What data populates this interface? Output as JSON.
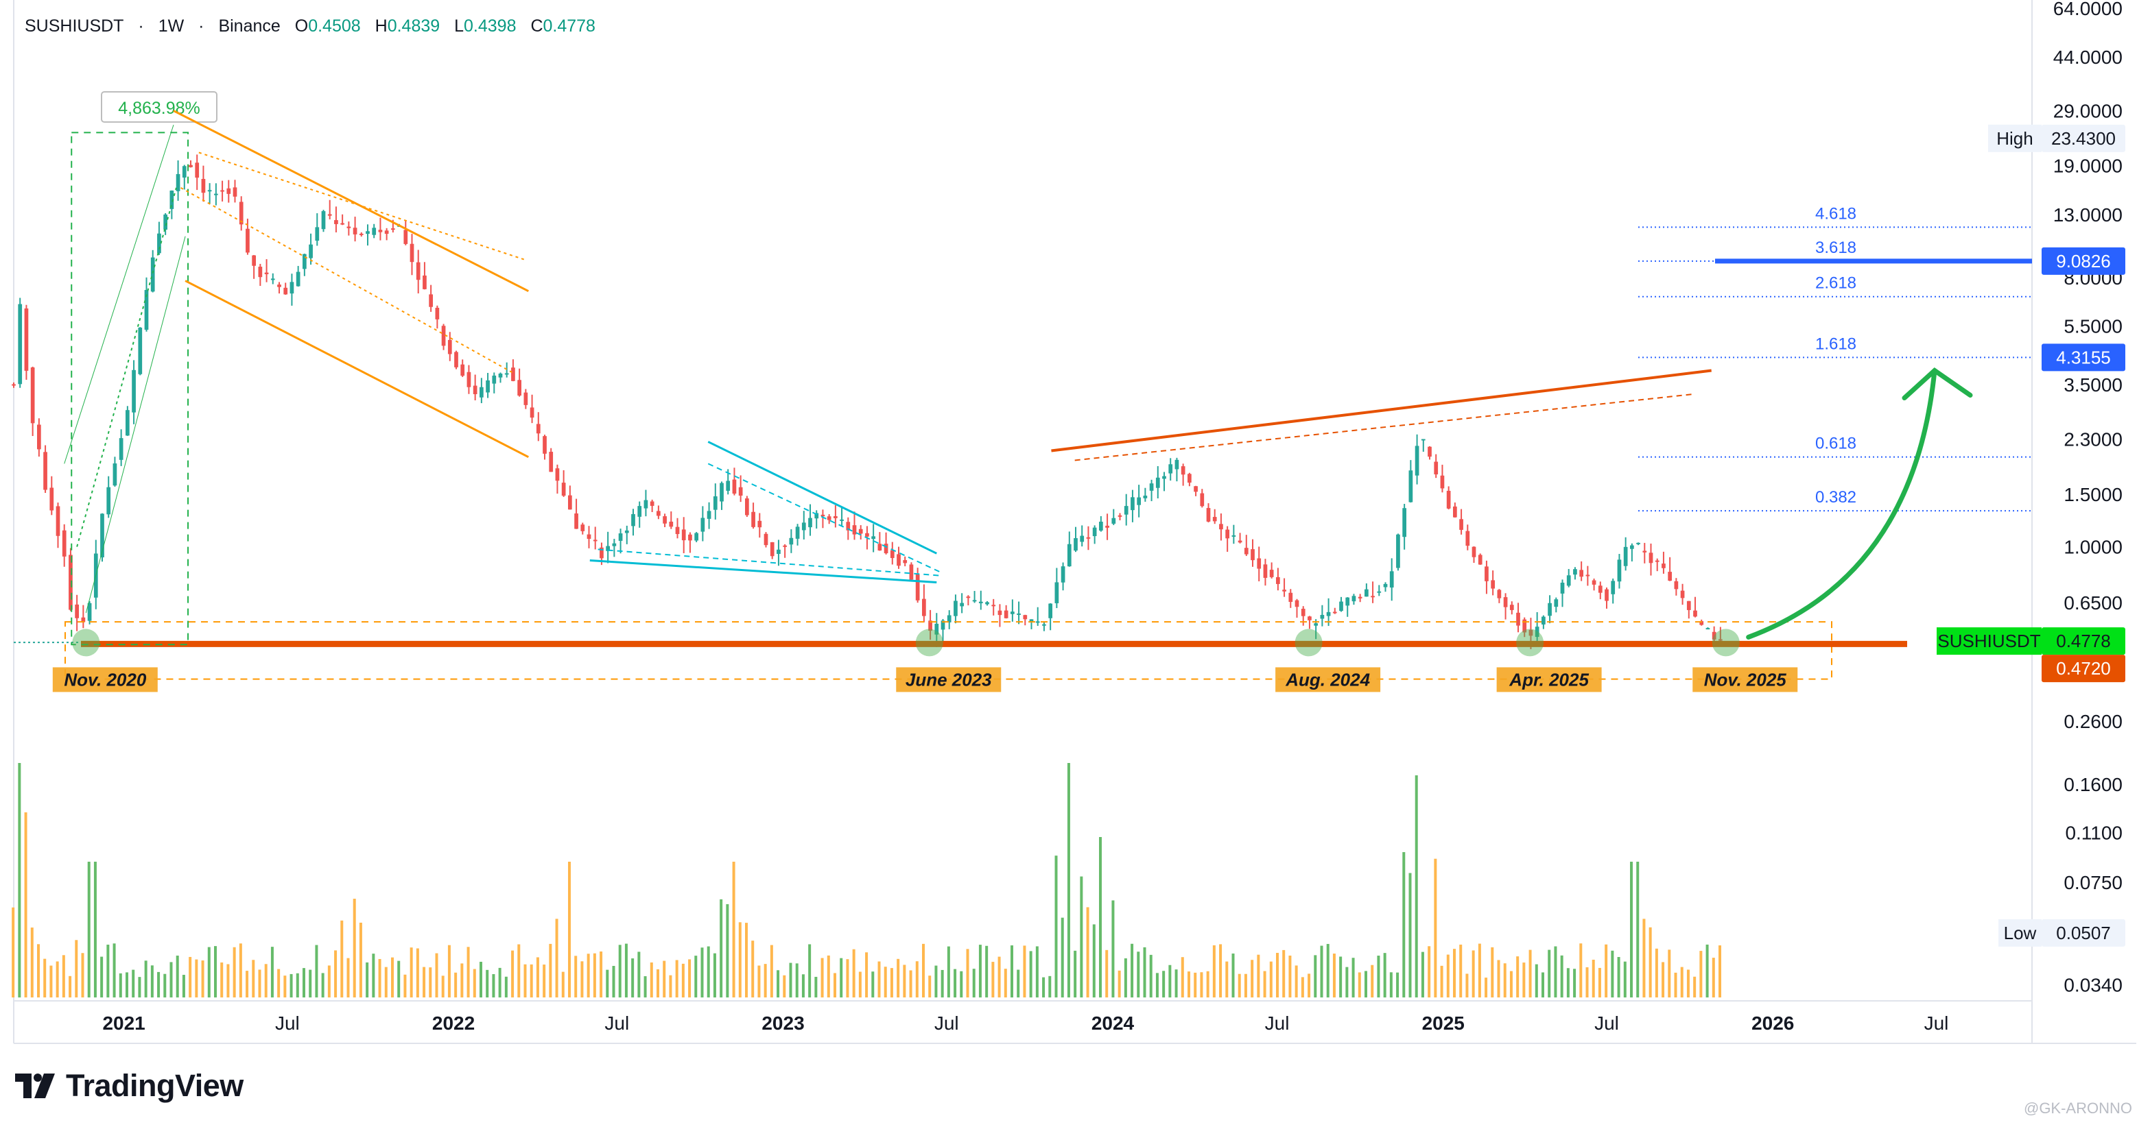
{
  "header": {
    "symbol": "SUSHIUSDT",
    "interval": "1W",
    "exchange": "Binance",
    "separator": "·",
    "open_label": "O",
    "open": "0.4508",
    "high_label": "H",
    "high": "0.4839",
    "low_label": "L",
    "low": "0.4398",
    "close_label": "C",
    "close": "0.4778"
  },
  "branding": {
    "logo_text": "TradingView",
    "watermark": "@GK-ARONNO"
  },
  "colors": {
    "up": "#26a69a",
    "down": "#ef5350",
    "support": "#e65100",
    "orange": "#ff9800",
    "cyan": "#00bcd4",
    "fib": "#2962ff",
    "arrow": "#22b14c",
    "volume_up": "#66bb6a",
    "volume_down": "#ffb74d"
  },
  "chart_data": {
    "type": "candlestick",
    "symbol": "SUSHIUSDT",
    "timeframe": "1W",
    "y_scale": "log",
    "ylim": [
      0.03,
      64
    ],
    "x_range": [
      "2020-09-01",
      "2026-10-15"
    ],
    "y_ticks": [
      {
        "value": 64,
        "label": "64.0000"
      },
      {
        "value": 44,
        "label": "44.0000"
      },
      {
        "value": 29,
        "label": "29.0000"
      },
      {
        "value": 19,
        "label": "19.0000"
      },
      {
        "value": 13,
        "label": "13.0000"
      },
      {
        "value": 8,
        "label": "8.0000"
      },
      {
        "value": 5.5,
        "label": "5.5000"
      },
      {
        "value": 3.5,
        "label": "3.5000"
      },
      {
        "value": 2.3,
        "label": "2.3000"
      },
      {
        "value": 1.5,
        "label": "1.5000"
      },
      {
        "value": 1.0,
        "label": "1.0000"
      },
      {
        "value": 0.65,
        "label": "0.6500"
      },
      {
        "value": 0.26,
        "label": "0.2600"
      },
      {
        "value": 0.16,
        "label": "0.1600"
      },
      {
        "value": 0.11,
        "label": "0.1100"
      },
      {
        "value": 0.075,
        "label": "0.0750"
      },
      {
        "value": 0.0507,
        "label": "0.0507"
      },
      {
        "value": 0.034,
        "label": "0.0340"
      }
    ],
    "x_ticks": [
      {
        "date": "2021-01-01",
        "label": "2021",
        "bold": true
      },
      {
        "date": "2021-07-01",
        "label": "Jul",
        "bold": false
      },
      {
        "date": "2022-01-01",
        "label": "2022",
        "bold": true
      },
      {
        "date": "2022-07-01",
        "label": "Jul",
        "bold": false
      },
      {
        "date": "2023-01-01",
        "label": "2023",
        "bold": true
      },
      {
        "date": "2023-07-01",
        "label": "Jul",
        "bold": false
      },
      {
        "date": "2024-01-01",
        "label": "2024",
        "bold": true
      },
      {
        "date": "2024-07-01",
        "label": "Jul",
        "bold": false
      },
      {
        "date": "2025-01-01",
        "label": "2025",
        "bold": true
      },
      {
        "date": "2025-07-01",
        "label": "Jul",
        "bold": false
      },
      {
        "date": "2026-01-01",
        "label": "2026",
        "bold": true
      },
      {
        "date": "2026-07-01",
        "label": "Jul",
        "bold": false
      }
    ],
    "price_path": [
      {
        "date": "2020-09-01",
        "price": 3.5
      },
      {
        "date": "2020-09-08",
        "price": 6.3
      },
      {
        "date": "2020-09-22",
        "price": 2.6
      },
      {
        "date": "2020-10-06",
        "price": 1.6
      },
      {
        "date": "2020-10-27",
        "price": 0.95
      },
      {
        "date": "2020-11-04",
        "price": 0.6
      },
      {
        "date": "2020-11-20",
        "price": 0.55
      },
      {
        "date": "2020-12-10",
        "price": 1.4
      },
      {
        "date": "2021-01-05",
        "price": 2.8
      },
      {
        "date": "2021-02-01",
        "price": 9.5
      },
      {
        "date": "2021-02-20",
        "price": 15.0
      },
      {
        "date": "2021-03-13",
        "price": 20.5
      },
      {
        "date": "2021-04-01",
        "price": 15.0
      },
      {
        "date": "2021-05-01",
        "price": 16.0
      },
      {
        "date": "2021-05-20",
        "price": 9.0
      },
      {
        "date": "2021-07-01",
        "price": 7.0
      },
      {
        "date": "2021-08-10",
        "price": 13.0
      },
      {
        "date": "2021-09-20",
        "price": 11.0
      },
      {
        "date": "2021-11-01",
        "price": 12.0
      },
      {
        "date": "2021-12-20",
        "price": 5.0
      },
      {
        "date": "2022-01-25",
        "price": 3.2
      },
      {
        "date": "2022-03-01",
        "price": 4.0
      },
      {
        "date": "2022-04-01",
        "price": 2.5
      },
      {
        "date": "2022-05-15",
        "price": 1.2
      },
      {
        "date": "2022-06-15",
        "price": 0.95
      },
      {
        "date": "2022-08-01",
        "price": 1.4
      },
      {
        "date": "2022-09-20",
        "price": 1.05
      },
      {
        "date": "2022-11-01",
        "price": 1.7
      },
      {
        "date": "2022-12-20",
        "price": 0.95
      },
      {
        "date": "2023-02-10",
        "price": 1.3
      },
      {
        "date": "2023-04-01",
        "price": 1.1
      },
      {
        "date": "2023-05-20",
        "price": 0.85
      },
      {
        "date": "2023-06-12",
        "price": 0.5
      },
      {
        "date": "2023-07-20",
        "price": 0.68
      },
      {
        "date": "2023-09-01",
        "price": 0.6
      },
      {
        "date": "2023-10-15",
        "price": 0.55
      },
      {
        "date": "2023-11-15",
        "price": 1.0
      },
      {
        "date": "2024-01-10",
        "price": 1.3
      },
      {
        "date": "2024-03-12",
        "price": 1.9
      },
      {
        "date": "2024-04-20",
        "price": 1.2
      },
      {
        "date": "2024-06-01",
        "price": 0.95
      },
      {
        "date": "2024-08-05",
        "price": 0.55
      },
      {
        "date": "2024-09-15",
        "price": 0.65
      },
      {
        "date": "2024-11-01",
        "price": 0.75
      },
      {
        "date": "2024-12-05",
        "price": 2.4
      },
      {
        "date": "2025-01-10",
        "price": 1.3
      },
      {
        "date": "2025-02-15",
        "price": 0.8
      },
      {
        "date": "2025-04-07",
        "price": 0.5
      },
      {
        "date": "2025-05-25",
        "price": 0.85
      },
      {
        "date": "2025-07-01",
        "price": 0.68
      },
      {
        "date": "2025-07-25",
        "price": 1.05
      },
      {
        "date": "2025-09-01",
        "price": 0.85
      },
      {
        "date": "2025-10-10",
        "price": 0.55
      },
      {
        "date": "2025-11-10",
        "price": 0.45
      }
    ],
    "support_level": 0.472,
    "last_price": 0.4778,
    "all_time_high": 23.43,
    "all_time_low": 0.0507,
    "fibonacci_levels": [
      {
        "ratio": "0.382",
        "price": 1.32
      },
      {
        "ratio": "0.618",
        "price": 2.0
      },
      {
        "ratio": "1.618",
        "price": 4.3155
      },
      {
        "ratio": "2.618",
        "price": 6.9
      },
      {
        "ratio": "3.618",
        "price": 9.0826
      },
      {
        "ratio": "4.618",
        "price": 11.8
      }
    ],
    "target_price": 9.0826,
    "target_fib_1618": 4.3155,
    "annotations": {
      "rally_percent": "4,863.98%",
      "support_touches": [
        {
          "label": "Nov. 2020",
          "date": "2020-11-20"
        },
        {
          "label": "June 2023",
          "date": "2023-06-12"
        },
        {
          "label": "Aug. 2024",
          "date": "2024-08-05"
        },
        {
          "label": "Apr. 2025",
          "date": "2025-04-07"
        },
        {
          "label": "Nov. 2025",
          "date": "2025-11-10"
        }
      ]
    },
    "price_labels": {
      "high_label": "High",
      "high_value": "23.4300",
      "low_label": "Low",
      "low_value": "0.0507",
      "symbol_label": "SUSHIUSDT",
      "last_value": "0.4778",
      "support_value": "0.4720",
      "fib_3618_value": "9.0826",
      "fib_1618_value": "4.3155"
    },
    "volume_spikes": [
      {
        "date": "2020-09-08",
        "level": 0.95
      },
      {
        "date": "2020-09-15",
        "level": 0.75
      },
      {
        "date": "2020-11-27",
        "level": 0.55
      },
      {
        "date": "2021-09-15",
        "level": 0.4
      },
      {
        "date": "2022-05-10",
        "level": 0.55
      },
      {
        "date": "2022-11-10",
        "level": 0.55
      },
      {
        "date": "2023-11-15",
        "level": 0.95
      },
      {
        "date": "2023-12-20",
        "level": 0.65
      },
      {
        "date": "2024-12-05",
        "level": 0.9
      },
      {
        "date": "2025-08-01",
        "level": 0.55
      }
    ]
  }
}
